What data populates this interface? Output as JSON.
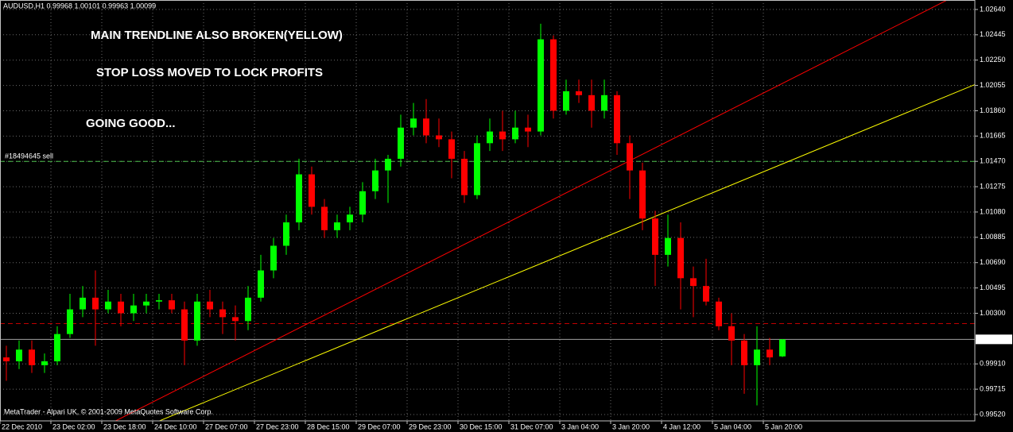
{
  "chart_data": {
    "type": "candlestick",
    "title": "AUDUSD,H1  0.99968 1.00101 0.99963 1.00099",
    "annotations": [
      "MAIN TRENDLINE ALSO BROKEN(YELLOW)",
      "STOP LOSS MOVED TO LOCK PROFITS",
      "GOING GOOD..."
    ],
    "copyright": "MetaTrader - Alpari UK, © 2001-2009 MetaQuotes Software Corp.",
    "categories": [
      "22 Dec 2010",
      null,
      null,
      null,
      "23 Dec 02:00",
      null,
      null,
      null,
      "23 Dec 18:00",
      null,
      null,
      null,
      "24 Dec 10:00",
      null,
      null,
      null,
      "27 Dec 07:00",
      null,
      null,
      null,
      "27 Dec 23:00",
      null,
      null,
      null,
      "28 Dec 15:00",
      null,
      null,
      null,
      "29 Dec 07:00",
      null,
      null,
      null,
      "29 Dec 23:00",
      null,
      null,
      null,
      "30 Dec 15:00",
      null,
      null,
      null,
      "31 Dec 07:00",
      null,
      null,
      null,
      "3 Jan 04:00",
      null,
      null,
      null,
      "3 Jan 20:00",
      null,
      null,
      null,
      "4 Jan 12:00",
      null,
      null,
      null,
      "5 Jan 04:00",
      null,
      null,
      null,
      "5 Jan 20:00",
      null
    ],
    "open": [
      0.9996,
      0.9993,
      1.0002,
      0.999,
      0.9993,
      1.0014,
      1.0033,
      1.0042,
      1.0033,
      1.0039,
      1.003,
      1.0036,
      1.0039,
      1.004,
      1.0033,
      1.0009,
      1.0039,
      1.0033,
      1.0027,
      1.0024,
      1.0042,
      1.0063,
      1.0082,
      1.01,
      1.0137,
      1.0112,
      1.0094,
      1.01,
      1.0106,
      1.0124,
      1.014,
      1.0149,
      1.0173,
      1.018,
      1.0167,
      1.0164,
      1.0149,
      1.0121,
      1.0161,
      1.017,
      1.0164,
      1.0173,
      1.017,
      1.0241,
      1.0186,
      1.0201,
      1.0198,
      1.0186,
      1.0198,
      1.0161,
      1.014,
      1.0103,
      1.0075,
      1.0088,
      1.0057,
      1.0051,
      1.0039,
      1.002,
      1.0009,
      0.999,
      1.0002,
      0.99968
    ],
    "high": [
      1.0005,
      1.0009,
      1.0009,
      0.9999,
      1.002,
      1.0045,
      1.0051,
      1.0063,
      1.0048,
      1.0045,
      1.0045,
      1.0045,
      1.0045,
      1.0045,
      1.0039,
      1.0045,
      1.0048,
      1.0039,
      1.0036,
      1.0051,
      1.0075,
      1.0088,
      1.0106,
      1.0149,
      1.0143,
      1.0118,
      1.0106,
      1.0112,
      1.0131,
      1.0149,
      1.0152,
      1.0183,
      1.0192,
      1.0195,
      1.018,
      1.017,
      1.0155,
      1.0167,
      1.018,
      1.0186,
      1.0186,
      1.0183,
      1.0253,
      1.0244,
      1.021,
      1.021,
      1.021,
      1.021,
      1.0201,
      1.0167,
      1.0146,
      1.0109,
      1.0106,
      1.01,
      1.0066,
      1.0072,
      1.0042,
      1.003,
      1.0014,
      1.002,
      1.0011,
      1.00101
    ],
    "low": [
      0.9978,
      0.9987,
      0.9984,
      0.9984,
      0.999,
      1.0011,
      1.0027,
      1.0005,
      1.003,
      1.002,
      1.0024,
      1.003,
      1.0033,
      1.003,
      0.999,
      1.0005,
      1.0027,
      1.0014,
      1.0009,
      1.0017,
      1.0039,
      1.0057,
      1.0075,
      1.0094,
      1.0106,
      1.0088,
      1.0088,
      1.0094,
      1.01,
      1.0118,
      1.0115,
      1.0143,
      1.0167,
      1.0161,
      1.0158,
      1.0134,
      1.0115,
      1.0118,
      1.0155,
      1.0155,
      1.0161,
      1.0158,
      1.0167,
      1.018,
      1.0183,
      1.0192,
      1.0173,
      1.018,
      1.0152,
      1.0118,
      1.0094,
      1.0051,
      1.0066,
      1.0033,
      1.0027,
      1.0036,
      1.0017,
      0.999,
      0.9968,
      0.9959,
      0.999,
      0.99963
    ],
    "close": [
      0.9993,
      1.0002,
      0.999,
      0.9993,
      1.0014,
      1.0033,
      1.0042,
      1.0033,
      1.0039,
      1.003,
      1.0036,
      1.0039,
      1.004,
      1.0033,
      1.0009,
      1.0039,
      1.0033,
      1.0027,
      1.0024,
      1.0042,
      1.0063,
      1.0082,
      1.01,
      1.0137,
      1.0112,
      1.0094,
      1.01,
      1.0106,
      1.0124,
      1.014,
      1.0149,
      1.0173,
      1.018,
      1.0167,
      1.0164,
      1.0149,
      1.0121,
      1.0161,
      1.017,
      1.0164,
      1.0173,
      1.017,
      1.0241,
      1.0186,
      1.0201,
      1.0198,
      1.0186,
      1.0198,
      1.0161,
      1.014,
      1.0103,
      1.0075,
      1.0088,
      1.0057,
      1.0051,
      1.0039,
      1.002,
      1.0009,
      0.999,
      1.0002,
      0.9996,
      1.00099
    ],
    "up_color": "#00ff00",
    "down_color": "#ff0000",
    "ylim": [
      0.99471,
      1.02713
    ],
    "yticks": [
      {
        "value": 1.0264,
        "label": "1.02640"
      },
      1.02445,
      {
        "value": 1.0225,
        "label": "1.02250"
      },
      1.02055,
      {
        "value": 1.0186,
        "label": "1.01860"
      },
      1.01665,
      {
        "value": 1.0147,
        "label": "1.01470"
      },
      1.01275,
      {
        "value": 1.0108,
        "label": "1.01080"
      },
      1.00885,
      {
        "value": 1.0069,
        "label": "1.00690"
      },
      1.00495,
      {
        "value": 1.003,
        "label": "1.00300"
      },
      {
        "value": 0.9991,
        "label": "0.99910"
      },
      0.99715,
      {
        "value": 0.9952,
        "label": "0.99520"
      }
    ],
    "grid": true,
    "bid": 1.00099,
    "order_line": {
      "label": "#18494645 sell",
      "value": 1.0147,
      "color": "#4cbf4c"
    },
    "stop_line": {
      "value": 1.0022,
      "color": "#c00000"
    },
    "trendlines": [
      {
        "color": "#ff0000",
        "points": [
          [
            8.56,
            0.9947
          ],
          [
            73.9,
            1.0271
          ]
        ]
      },
      {
        "color": "#ffff00",
        "points": [
          [
            12,
            0.9947
          ],
          [
            78.56,
            1.0216
          ]
        ]
      }
    ]
  }
}
